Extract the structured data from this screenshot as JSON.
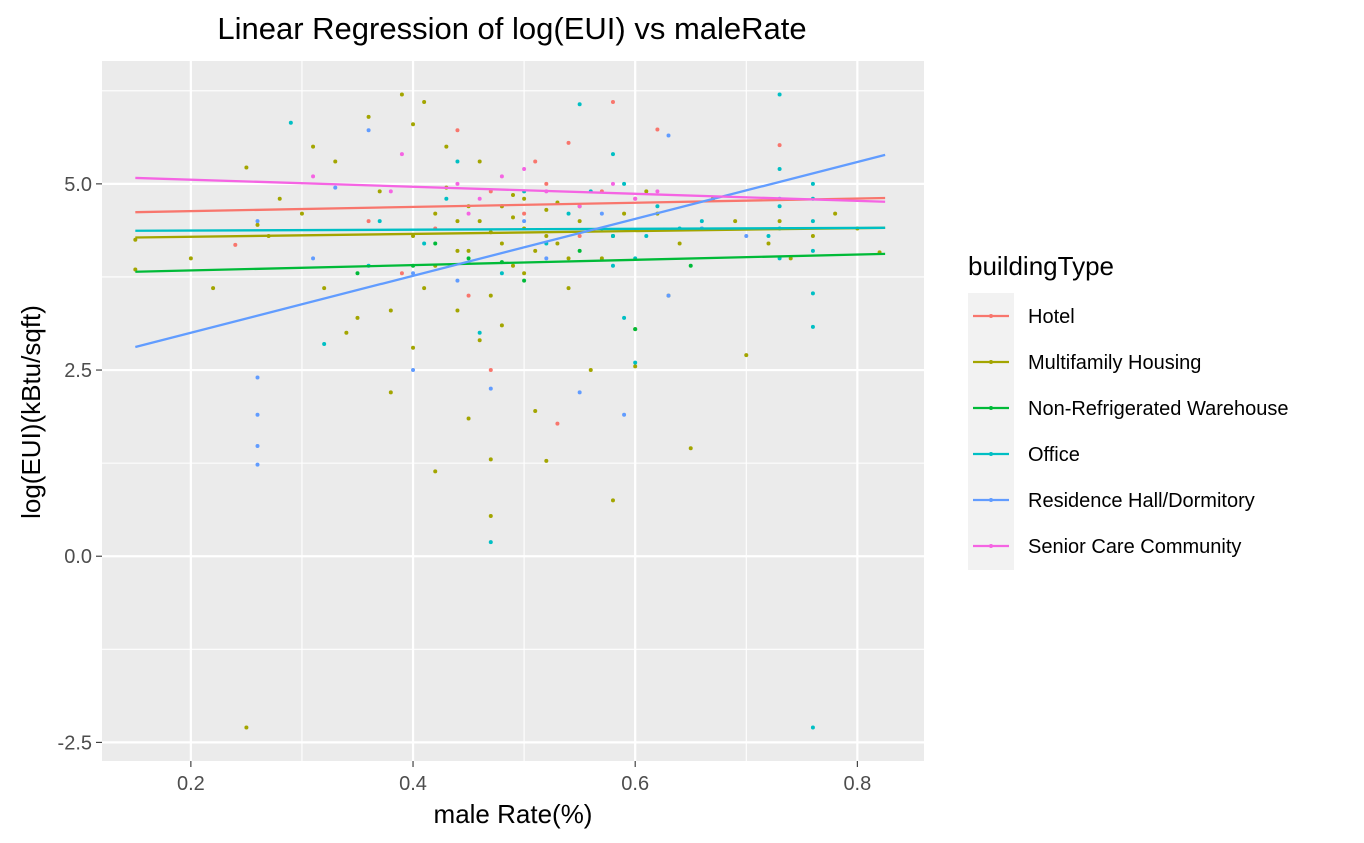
{
  "chart_data": {
    "type": "scatter",
    "title": "Linear Regression of log(EUI) vs maleRate",
    "xlabel": "male Rate(%)",
    "ylabel": "log(EUI)(kBtu/sqft)",
    "xlim": [
      0.12,
      0.86
    ],
    "ylim": [
      -2.75,
      6.65
    ],
    "x_ticks": [
      {
        "value": 0.2,
        "label": "0.2"
      },
      {
        "value": 0.4,
        "label": "0.4"
      },
      {
        "value": 0.6,
        "label": "0.6"
      },
      {
        "value": 0.8,
        "label": "0.8"
      }
    ],
    "y_ticks": [
      {
        "value": -2.5,
        "label": "-2.5"
      },
      {
        "value": 0.0,
        "label": "0.0"
      },
      {
        "value": 2.5,
        "label": "2.5"
      },
      {
        "value": 5.0,
        "label": "5.0"
      }
    ],
    "background": "#ebebeb",
    "grid": true,
    "legend": {
      "title": "buildingType",
      "position": "right"
    },
    "series": [
      {
        "name": "Hotel",
        "color": "#f8766d",
        "fit_line": {
          "x": [
            0.15,
            0.825
          ],
          "y": [
            4.62,
            4.81
          ]
        },
        "points": [
          [
            0.24,
            4.18
          ],
          [
            0.44,
            5.72
          ],
          [
            0.45,
            3.5
          ],
          [
            0.47,
            4.9
          ],
          [
            0.5,
            4.6
          ],
          [
            0.52,
            5.0
          ],
          [
            0.53,
            1.78
          ],
          [
            0.54,
            5.55
          ],
          [
            0.58,
            6.1
          ],
          [
            0.62,
            5.73
          ],
          [
            0.73,
            5.52
          ],
          [
            0.42,
            4.4
          ],
          [
            0.48,
            4.7
          ],
          [
            0.55,
            4.3
          ],
          [
            0.6,
            4.8
          ],
          [
            0.36,
            4.5
          ],
          [
            0.39,
            3.8
          ],
          [
            0.47,
            2.5
          ],
          [
            0.51,
            5.3
          ],
          [
            0.57,
            4.9
          ]
        ]
      },
      {
        "name": "Multifamily Housing",
        "color": "#a3a500",
        "fit_line": {
          "x": [
            0.15,
            0.825
          ],
          "y": [
            4.28,
            4.41
          ]
        },
        "points": [
          [
            0.15,
            4.25
          ],
          [
            0.15,
            3.85
          ],
          [
            0.25,
            5.22
          ],
          [
            0.25,
            -2.3
          ],
          [
            0.26,
            4.45
          ],
          [
            0.27,
            4.3
          ],
          [
            0.3,
            4.6
          ],
          [
            0.31,
            5.5
          ],
          [
            0.33,
            5.3
          ],
          [
            0.35,
            3.2
          ],
          [
            0.36,
            5.9
          ],
          [
            0.38,
            2.2
          ],
          [
            0.39,
            6.2
          ],
          [
            0.4,
            5.8
          ],
          [
            0.4,
            2.8
          ],
          [
            0.41,
            6.1
          ],
          [
            0.42,
            1.14
          ],
          [
            0.43,
            5.5
          ],
          [
            0.44,
            4.5
          ],
          [
            0.45,
            1.85
          ],
          [
            0.46,
            5.3
          ],
          [
            0.47,
            1.3
          ],
          [
            0.47,
            0.54
          ],
          [
            0.48,
            4.7
          ],
          [
            0.49,
            3.9
          ],
          [
            0.5,
            4.8
          ],
          [
            0.51,
            1.95
          ],
          [
            0.52,
            1.28
          ],
          [
            0.53,
            4.2
          ],
          [
            0.54,
            3.6
          ],
          [
            0.55,
            4.5
          ],
          [
            0.56,
            2.5
          ],
          [
            0.58,
            0.75
          ],
          [
            0.58,
            4.3
          ],
          [
            0.6,
            3.05
          ],
          [
            0.6,
            2.55
          ],
          [
            0.62,
            4.6
          ],
          [
            0.63,
            3.5
          ],
          [
            0.65,
            1.45
          ],
          [
            0.66,
            4.4
          ],
          [
            0.7,
            2.7
          ],
          [
            0.72,
            4.2
          ],
          [
            0.73,
            4.5
          ],
          [
            0.76,
            4.3
          ],
          [
            0.82,
            4.08
          ],
          [
            0.2,
            4.0
          ],
          [
            0.22,
            3.6
          ],
          [
            0.28,
            4.8
          ],
          [
            0.32,
            3.6
          ],
          [
            0.34,
            3.0
          ],
          [
            0.37,
            4.9
          ],
          [
            0.38,
            3.3
          ],
          [
            0.41,
            3.6
          ],
          [
            0.42,
            3.9
          ],
          [
            0.43,
            4.95
          ],
          [
            0.44,
            3.3
          ],
          [
            0.45,
            4.1
          ],
          [
            0.46,
            2.9
          ],
          [
            0.47,
            3.5
          ],
          [
            0.48,
            3.1
          ],
          [
            0.49,
            4.85
          ],
          [
            0.5,
            3.8
          ],
          [
            0.51,
            4.1
          ],
          [
            0.52,
            4.65
          ],
          [
            0.53,
            4.75
          ],
          [
            0.54,
            4.0
          ],
          [
            0.55,
            4.7
          ],
          [
            0.57,
            4.0
          ],
          [
            0.59,
            4.6
          ],
          [
            0.61,
            4.9
          ],
          [
            0.64,
            4.2
          ],
          [
            0.67,
            4.8
          ],
          [
            0.69,
            4.5
          ],
          [
            0.74,
            4.0
          ],
          [
            0.78,
            4.6
          ],
          [
            0.8,
            4.4
          ],
          [
            0.4,
            4.3
          ],
          [
            0.42,
            4.6
          ],
          [
            0.44,
            4.1
          ],
          [
            0.46,
            4.5
          ],
          [
            0.48,
            4.2
          ],
          [
            0.5,
            4.4
          ],
          [
            0.52,
            4.3
          ],
          [
            0.45,
            4.7
          ],
          [
            0.47,
            4.35
          ],
          [
            0.49,
            4.55
          ]
        ]
      },
      {
        "name": "Non-Refrigerated Warehouse",
        "color": "#00ba38",
        "fit_line": {
          "x": [
            0.15,
            0.825
          ],
          "y": [
            3.82,
            4.06
          ]
        },
        "points": [
          [
            0.4,
            3.9
          ],
          [
            0.45,
            4.0
          ],
          [
            0.5,
            3.7
          ],
          [
            0.55,
            4.1
          ],
          [
            0.6,
            3.05
          ],
          [
            0.35,
            3.8
          ],
          [
            0.42,
            4.2
          ],
          [
            0.48,
            3.95
          ],
          [
            0.58,
            4.3
          ],
          [
            0.65,
            3.9
          ]
        ]
      },
      {
        "name": "Office",
        "color": "#00bfc4",
        "fit_line": {
          "x": [
            0.15,
            0.825
          ],
          "y": [
            4.37,
            4.41
          ]
        },
        "points": [
          [
            0.29,
            5.82
          ],
          [
            0.32,
            2.85
          ],
          [
            0.36,
            3.9
          ],
          [
            0.37,
            4.5
          ],
          [
            0.41,
            4.2
          ],
          [
            0.43,
            4.8
          ],
          [
            0.44,
            5.3
          ],
          [
            0.46,
            3.0
          ],
          [
            0.47,
            0.19
          ],
          [
            0.48,
            3.8
          ],
          [
            0.5,
            4.9
          ],
          [
            0.52,
            4.2
          ],
          [
            0.55,
            6.07
          ],
          [
            0.57,
            4.4
          ],
          [
            0.58,
            5.4
          ],
          [
            0.58,
            3.9
          ],
          [
            0.58,
            4.3
          ],
          [
            0.59,
            3.2
          ],
          [
            0.6,
            4.0
          ],
          [
            0.6,
            2.6
          ],
          [
            0.62,
            4.7
          ],
          [
            0.64,
            4.4
          ],
          [
            0.66,
            4.5
          ],
          [
            0.72,
            4.3
          ],
          [
            0.73,
            6.2
          ],
          [
            0.73,
            5.2
          ],
          [
            0.73,
            4.4
          ],
          [
            0.73,
            4.0
          ],
          [
            0.73,
            4.7
          ],
          [
            0.76,
            5.0
          ],
          [
            0.76,
            4.5
          ],
          [
            0.76,
            4.1
          ],
          [
            0.76,
            3.53
          ],
          [
            0.76,
            3.08
          ],
          [
            0.76,
            4.8
          ],
          [
            0.76,
            -2.3
          ],
          [
            0.54,
            4.6
          ],
          [
            0.56,
            4.9
          ],
          [
            0.59,
            5.0
          ],
          [
            0.61,
            4.3
          ]
        ]
      },
      {
        "name": "Residence Hall/Dormitory",
        "color": "#619cff",
        "fit_line": {
          "x": [
            0.15,
            0.825
          ],
          "y": [
            2.81,
            5.39
          ]
        },
        "points": [
          [
            0.26,
            4.5
          ],
          [
            0.26,
            2.4
          ],
          [
            0.26,
            1.9
          ],
          [
            0.26,
            1.48
          ],
          [
            0.26,
            1.23
          ],
          [
            0.31,
            4.0
          ],
          [
            0.33,
            4.95
          ],
          [
            0.36,
            5.72
          ],
          [
            0.4,
            2.5
          ],
          [
            0.4,
            3.8
          ],
          [
            0.44,
            3.7
          ],
          [
            0.47,
            2.25
          ],
          [
            0.5,
            4.5
          ],
          [
            0.52,
            4.0
          ],
          [
            0.55,
            2.2
          ],
          [
            0.57,
            4.6
          ],
          [
            0.59,
            1.9
          ],
          [
            0.63,
            5.65
          ],
          [
            0.63,
            3.5
          ],
          [
            0.66,
            4.4
          ],
          [
            0.7,
            4.3
          ],
          [
            0.73,
            4.8
          ]
        ]
      },
      {
        "name": "Senior Care Community",
        "color": "#f564e3",
        "fit_line": {
          "x": [
            0.15,
            0.825
          ],
          "y": [
            5.08,
            4.76
          ]
        },
        "points": [
          [
            0.31,
            5.1
          ],
          [
            0.38,
            4.9
          ],
          [
            0.39,
            5.4
          ],
          [
            0.44,
            5.0
          ],
          [
            0.46,
            4.8
          ],
          [
            0.5,
            5.2
          ],
          [
            0.52,
            4.9
          ],
          [
            0.55,
            4.7
          ],
          [
            0.58,
            5.0
          ],
          [
            0.6,
            4.8
          ],
          [
            0.62,
            4.9
          ],
          [
            0.45,
            4.6
          ],
          [
            0.48,
            5.1
          ]
        ]
      }
    ]
  }
}
